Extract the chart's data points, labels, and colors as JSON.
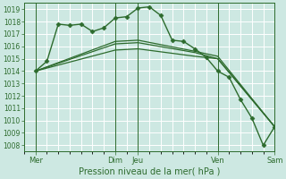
{
  "xlabel": "Pression niveau de la mer( hPa )",
  "bg_color": "#cde8e2",
  "grid_color": "#ffffff",
  "line_color": "#2d6b2d",
  "ylim": [
    1007.5,
    1019.5
  ],
  "yticks": [
    1008,
    1009,
    1010,
    1011,
    1012,
    1013,
    1014,
    1015,
    1016,
    1017,
    1018,
    1019
  ],
  "xlim": [
    0,
    22
  ],
  "xtick_positions": [
    1,
    8,
    10,
    17,
    22
  ],
  "xtick_labels": [
    "Mer",
    "Dim",
    "Jeu",
    "Ven",
    "Sam"
  ],
  "vline_positions": [
    1,
    8,
    10,
    17,
    22
  ],
  "lines": [
    {
      "comment": "main forecast line with diamond markers - rises to peak around Jeu then falls",
      "x": [
        1,
        2,
        3,
        4,
        5,
        6,
        7,
        8,
        9,
        10,
        11,
        12,
        13,
        14,
        15,
        16,
        17,
        18,
        19,
        20,
        21,
        22
      ],
      "y": [
        1014.0,
        1014.8,
        1017.8,
        1017.7,
        1017.8,
        1017.2,
        1017.5,
        1018.3,
        1018.4,
        1019.1,
        1019.2,
        1018.5,
        1016.5,
        1016.4,
        1015.8,
        1015.1,
        1014.0,
        1013.5,
        1011.7,
        1010.2,
        1008.0,
        1009.5
      ],
      "marker": "D",
      "markersize": 2.5,
      "lw": 1.0
    },
    {
      "comment": "smooth line 1 - starts 1014, rises to ~1016.5, stays flat then gently drops to ~1015.2, then falls to 1009.5",
      "x": [
        1,
        8,
        10,
        15,
        17,
        22
      ],
      "y": [
        1014.0,
        1016.4,
        1016.5,
        1015.6,
        1015.2,
        1009.5
      ],
      "marker": null,
      "markersize": 0,
      "lw": 0.9
    },
    {
      "comment": "smooth line 2 - starts 1014, rises to ~1016.2, stays nearly flat, falls to 1009.5",
      "x": [
        1,
        8,
        10,
        15,
        17,
        22
      ],
      "y": [
        1014.0,
        1016.2,
        1016.3,
        1015.5,
        1015.0,
        1009.5
      ],
      "marker": null,
      "markersize": 0,
      "lw": 0.9
    },
    {
      "comment": "smooth line 3 - starts 1014, rises to ~1015.8, nearly flat, falls to 1009.5",
      "x": [
        1,
        8,
        10,
        15,
        17,
        22
      ],
      "y": [
        1014.0,
        1015.7,
        1015.8,
        1015.2,
        1015.0,
        1009.5
      ],
      "marker": null,
      "markersize": 0,
      "lw": 0.9
    }
  ]
}
